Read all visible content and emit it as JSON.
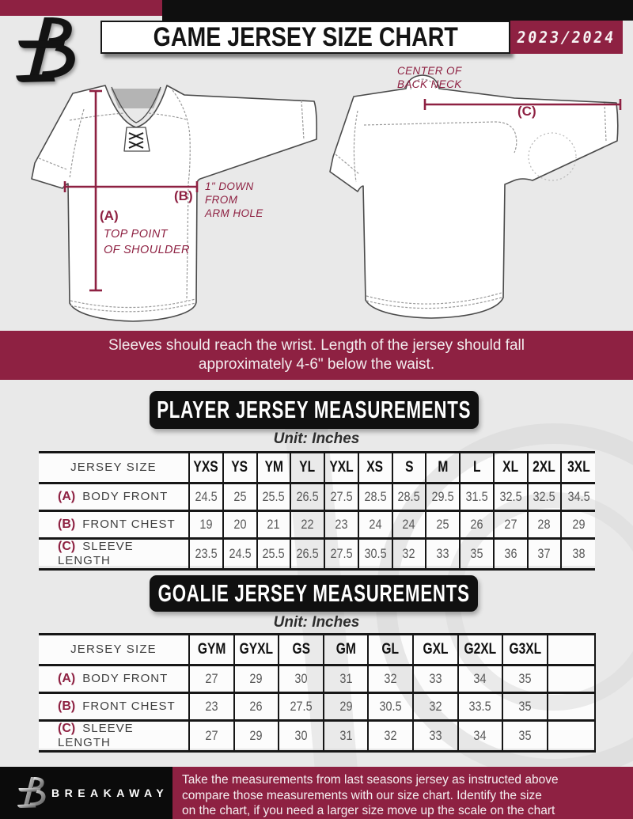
{
  "header": {
    "title": "GAME JERSEY SIZE CHART",
    "season": "2023/2024",
    "logo_name": "breakaway-b-logo"
  },
  "diagram": {
    "front": {
      "label_a": "(A)",
      "a_desc_line1": "TOP POINT",
      "a_desc_line2": "OF SHOULDER",
      "label_b": "(B)",
      "b_desc_line1": "1\" DOWN",
      "b_desc_line2": "FROM",
      "b_desc_line3": "ARM HOLE"
    },
    "back": {
      "label_c": "(C)",
      "neck_line1": "CENTER OF",
      "neck_line2": "BACK NECK"
    }
  },
  "notice_banner": {
    "line1": "Sleeves should reach the wrist. Length of the jersey should fall",
    "line2": "approximately 4-6\" below the waist."
  },
  "player_section": {
    "heading": "PLAYER JERSEY MEASUREMENTS",
    "unit": "Unit: Inches",
    "table": {
      "corner_header": "JERSEY SIZE",
      "sizes": [
        "YXS",
        "YS",
        "YM",
        "YL",
        "YXL",
        "XS",
        "S",
        "M",
        "L",
        "XL",
        "2XL",
        "3XL"
      ],
      "rows": [
        {
          "key": "(A)",
          "label": "BODY FRONT",
          "values": [
            "24.5",
            "25",
            "25.5",
            "26.5",
            "27.5",
            "28.5",
            "28.5",
            "29.5",
            "31.5",
            "32.5",
            "32.5",
            "34.5"
          ]
        },
        {
          "key": "(B)",
          "label": "FRONT CHEST",
          "values": [
            "19",
            "20",
            "21",
            "22",
            "23",
            "24",
            "24",
            "25",
            "26",
            "27",
            "28",
            "29"
          ]
        },
        {
          "key": "(C)",
          "label": "SLEEVE LENGTH",
          "values": [
            "23.5",
            "24.5",
            "25.5",
            "26.5",
            "27.5",
            "30.5",
            "32",
            "33",
            "35",
            "36",
            "37",
            "38"
          ]
        }
      ]
    }
  },
  "goalie_section": {
    "heading": "GOALIE JERSEY MEASUREMENTS",
    "unit": "Unit: Inches",
    "table": {
      "corner_header": "JERSEY SIZE",
      "sizes": [
        "GYM",
        "GYXL",
        "GS",
        "GM",
        "GL",
        "GXL",
        "G2XL",
        "G3XL",
        ""
      ],
      "rows": [
        {
          "key": "(A)",
          "label": "BODY FRONT",
          "values": [
            "27",
            "29",
            "30",
            "31",
            "32",
            "33",
            "34",
            "35",
            ""
          ]
        },
        {
          "key": "(B)",
          "label": "FRONT CHEST",
          "values": [
            "23",
            "26",
            "27.5",
            "29",
            "30.5",
            "32",
            "33.5",
            "35",
            ""
          ]
        },
        {
          "key": "(C)",
          "label": "SLEEVE LENGTH",
          "values": [
            "27",
            "29",
            "30",
            "31",
            "32",
            "33",
            "34",
            "35",
            ""
          ]
        }
      ]
    }
  },
  "footer": {
    "brand": "BREAKAWAY",
    "note_line1": "Take the measurements from last seasons jersey as instructed above",
    "note_line2": "compare those measurements  with our size chart. Identify the size",
    "note_line3": "on the chart, if you need a larger size move up the scale on the chart"
  },
  "colors": {
    "maroon": "#8e2142",
    "black": "#0f0f0f",
    "page_gray": "#e9e9e9"
  }
}
